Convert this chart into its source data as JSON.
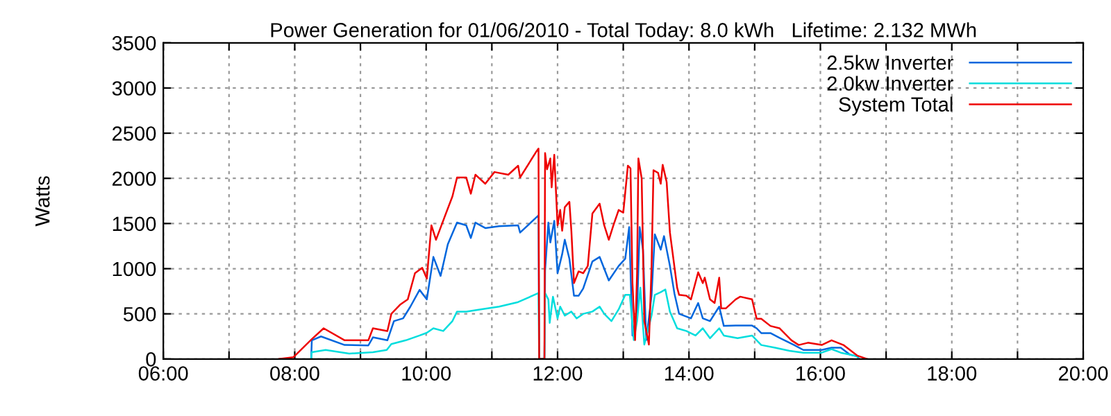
{
  "chart_data": {
    "type": "line",
    "title": "Power Generation for 01/06/2010 - Total Today: 8.0 kWh   Lifetime: 2.132 MWh",
    "ylabel": "Watts",
    "xlim": [
      6,
      20
    ],
    "ylim": [
      0,
      3500
    ],
    "xticks": [
      {
        "value": 6,
        "label": "06:00"
      },
      {
        "value": 7,
        "label": null
      },
      {
        "value": 8,
        "label": "08:00"
      },
      {
        "value": 9,
        "label": null
      },
      {
        "value": 10,
        "label": "10:00"
      },
      {
        "value": 11,
        "label": null
      },
      {
        "value": 12,
        "label": "12:00"
      },
      {
        "value": 13,
        "label": null
      },
      {
        "value": 14,
        "label": "14:00"
      },
      {
        "value": 15,
        "label": null
      },
      {
        "value": 16,
        "label": "16:00"
      },
      {
        "value": 17,
        "label": null
      },
      {
        "value": 18,
        "label": "18:00"
      },
      {
        "value": 19,
        "label": null
      },
      {
        "value": 20,
        "label": "20:00"
      }
    ],
    "yticks": [
      0,
      500,
      1000,
      1500,
      2000,
      2500,
      3000,
      3500
    ],
    "grid": true,
    "legend": "top right",
    "marker": "none",
    "line_style": "solid",
    "series": [
      {
        "name": "2.5kw Inverter",
        "color": "#0066dd",
        "x": [
          8.25,
          8.26,
          8.4,
          8.76,
          9.12,
          9.19,
          9.41,
          9.51,
          9.65,
          9.76,
          9.9,
          10.01,
          10.11,
          10.22,
          10.33,
          10.47,
          10.61,
          10.68,
          10.75,
          10.9,
          11.11,
          11.4,
          11.43,
          11.71,
          11.72,
          11.8,
          11.81,
          11.86,
          11.89,
          11.95,
          12.0,
          12.07,
          12.11,
          12.18,
          12.25,
          12.32,
          12.39,
          12.53,
          12.64,
          12.78,
          12.93,
          13.03,
          13.09,
          13.14,
          13.21,
          13.25,
          13.3,
          13.35,
          13.43,
          13.48,
          13.57,
          13.62,
          13.71,
          13.78,
          13.85,
          14.03,
          14.14,
          14.21,
          14.32,
          14.46,
          14.53,
          14.71,
          14.96,
          15.03,
          15.1,
          15.24,
          15.38,
          15.6,
          15.74,
          16.02,
          16.17,
          16.31,
          16.45,
          16.56,
          16.59
        ],
        "values": [
          0,
          207,
          250,
          155,
          150,
          240,
          207,
          420,
          450,
          580,
          765,
          660,
          1130,
          920,
          1270,
          1510,
          1480,
          1340,
          1510,
          1450,
          1470,
          1480,
          1400,
          1590,
          0,
          0,
          980,
          1510,
          1290,
          1530,
          950,
          1160,
          1320,
          1110,
          700,
          700,
          780,
          1080,
          1130,
          870,
          1030,
          1110,
          1460,
          260,
          520,
          1460,
          1210,
          210,
          700,
          1380,
          1210,
          1360,
          1030,
          720,
          500,
          450,
          620,
          450,
          420,
          580,
          366,
          370,
          370,
          340,
          287,
          287,
          234,
          155,
          100,
          100,
          125,
          125,
          48,
          30,
          0
        ]
      },
      {
        "name": "2.0kw Inverter",
        "color": "#00dddd",
        "x": [
          8.25,
          8.26,
          8.47,
          8.83,
          9.19,
          9.4,
          9.47,
          9.69,
          9.9,
          10.01,
          10.11,
          10.26,
          10.4,
          10.47,
          10.61,
          10.83,
          11.11,
          11.4,
          11.71,
          11.72,
          11.8,
          11.81,
          11.86,
          11.88,
          11.93,
          12.0,
          12.04,
          12.11,
          12.21,
          12.29,
          12.39,
          12.53,
          12.64,
          12.71,
          12.82,
          12.93,
          13.03,
          13.1,
          13.16,
          13.21,
          13.26,
          13.32,
          13.43,
          13.48,
          13.57,
          13.64,
          13.71,
          13.82,
          13.96,
          14.1,
          14.21,
          14.32,
          14.46,
          14.53,
          14.74,
          14.96,
          15.03,
          15.1,
          15.31,
          15.53,
          15.74,
          16.02,
          16.17,
          16.31,
          16.45,
          16.56,
          16.58
        ],
        "values": [
          0,
          75,
          100,
          60,
          75,
          100,
          165,
          207,
          260,
          290,
          340,
          310,
          420,
          525,
          525,
          550,
          580,
          630,
          730,
          0,
          0,
          730,
          660,
          400,
          690,
          450,
          580,
          480,
          525,
          450,
          500,
          525,
          580,
          500,
          420,
          550,
          710,
          710,
          210,
          420,
          790,
          160,
          480,
          710,
          740,
          770,
          525,
          340,
          310,
          260,
          340,
          230,
          340,
          260,
          230,
          260,
          207,
          155,
          125,
          90,
          70,
          70,
          110,
          70,
          48,
          30,
          0
        ]
      },
      {
        "name": "System Total",
        "color": "#ee0000",
        "x": [
          7.76,
          7.98,
          8.26,
          8.44,
          8.76,
          9.12,
          9.19,
          9.41,
          9.47,
          9.61,
          9.72,
          9.83,
          9.94,
          10.01,
          10.08,
          10.15,
          10.29,
          10.4,
          10.47,
          10.61,
          10.68,
          10.75,
          10.9,
          11.04,
          11.25,
          11.4,
          11.43,
          11.68,
          11.71,
          11.72,
          11.8,
          11.81,
          11.84,
          11.89,
          11.91,
          11.95,
          12.0,
          12.04,
          12.07,
          12.11,
          12.18,
          12.21,
          12.25,
          12.32,
          12.39,
          12.46,
          12.53,
          12.64,
          12.71,
          12.78,
          12.85,
          12.93,
          13.0,
          13.07,
          13.11,
          13.14,
          13.18,
          13.21,
          13.23,
          13.28,
          13.32,
          13.39,
          13.43,
          13.46,
          13.53,
          13.57,
          13.6,
          13.66,
          13.71,
          13.75,
          13.82,
          13.85,
          13.96,
          14.03,
          14.14,
          14.21,
          14.24,
          14.32,
          14.39,
          14.46,
          14.49,
          14.56,
          14.71,
          14.78,
          14.96,
          15.03,
          15.1,
          15.24,
          15.38,
          15.56,
          15.67,
          15.81,
          16.02,
          16.17,
          16.35,
          16.45,
          16.56,
          16.71
        ],
        "values": [
          0,
          20,
          220,
          340,
          207,
          207,
          340,
          310,
          500,
          605,
          660,
          950,
          1010,
          890,
          1480,
          1320,
          1590,
          1800,
          2010,
          2010,
          1830,
          2040,
          1940,
          2070,
          2040,
          2140,
          2010,
          2300,
          2330,
          0,
          0,
          2280,
          2100,
          2220,
          1900,
          2260,
          1480,
          1650,
          1420,
          1680,
          1740,
          1420,
          840,
          970,
          950,
          1030,
          1610,
          1720,
          1480,
          1320,
          1480,
          1650,
          1620,
          2140,
          2110,
          840,
          210,
          950,
          2220,
          2000,
          420,
          160,
          1010,
          2090,
          2060,
          1940,
          2150,
          1960,
          1400,
          1180,
          790,
          710,
          700,
          660,
          960,
          840,
          900,
          660,
          620,
          900,
          560,
          560,
          660,
          690,
          660,
          446,
          446,
          366,
          340,
          207,
          155,
          180,
          155,
          207,
          155,
          100,
          38,
          0
        ]
      }
    ]
  }
}
